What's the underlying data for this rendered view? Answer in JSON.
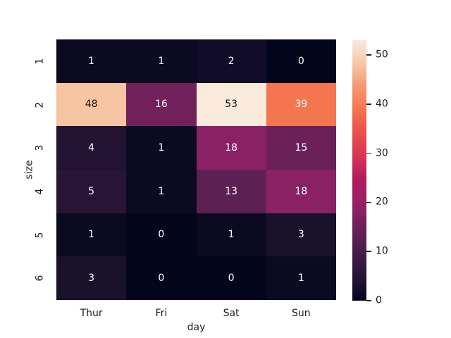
{
  "chart_data": {
    "type": "heatmap",
    "title": "",
    "xlabel": "day",
    "ylabel": "size",
    "x_categories": [
      "Thur",
      "Fri",
      "Sat",
      "Sun"
    ],
    "y_categories": [
      "1",
      "2",
      "3",
      "4",
      "5",
      "6"
    ],
    "values": [
      [
        1,
        1,
        2,
        0
      ],
      [
        48,
        16,
        53,
        39
      ],
      [
        4,
        1,
        18,
        15
      ],
      [
        5,
        1,
        13,
        18
      ],
      [
        1,
        0,
        1,
        3
      ],
      [
        3,
        0,
        0,
        1
      ]
    ],
    "vmin": 0,
    "vmax": 53,
    "colormap": "rocket",
    "grid": false,
    "value_colors": {
      "0": "#03051a",
      "1": "#0b0a21",
      "2": "#110d28",
      "3": "#1a112b",
      "4": "#211331",
      "5": "#281536",
      "13": "#5c2152",
      "15": "#6a2158",
      "16": "#72205a",
      "18": "#8a2164",
      "39": "#f3764f",
      "48": "#f7c5a2",
      "53": "#faebdd"
    },
    "annotation_text_colors": {
      "on_dark": "#ffffff",
      "on_light": "#141414"
    },
    "colorbar": {
      "position": "right",
      "ticks": [
        0,
        10,
        20,
        30,
        40,
        50
      ],
      "gradient_stops": [
        [
          0,
          "#03051a"
        ],
        [
          2,
          "#110d28"
        ],
        [
          4,
          "#211331"
        ],
        [
          5,
          "#281536"
        ],
        [
          8,
          "#3a1a43"
        ],
        [
          10,
          "#481c4b"
        ],
        [
          13,
          "#5c2152"
        ],
        [
          16,
          "#72205a"
        ],
        [
          18,
          "#8a2164"
        ],
        [
          21,
          "#9d2062"
        ],
        [
          25,
          "#b41b5f"
        ],
        [
          30,
          "#d93952"
        ],
        [
          35,
          "#ea5549"
        ],
        [
          39,
          "#f3764f"
        ],
        [
          44,
          "#f59a77"
        ],
        [
          48,
          "#f7c5a2"
        ],
        [
          53,
          "#faebdd"
        ]
      ]
    },
    "tick_label_color": "#1a1a1a",
    "axis_label_color": "#1a1a1a",
    "background_color": "#ffffff"
  }
}
